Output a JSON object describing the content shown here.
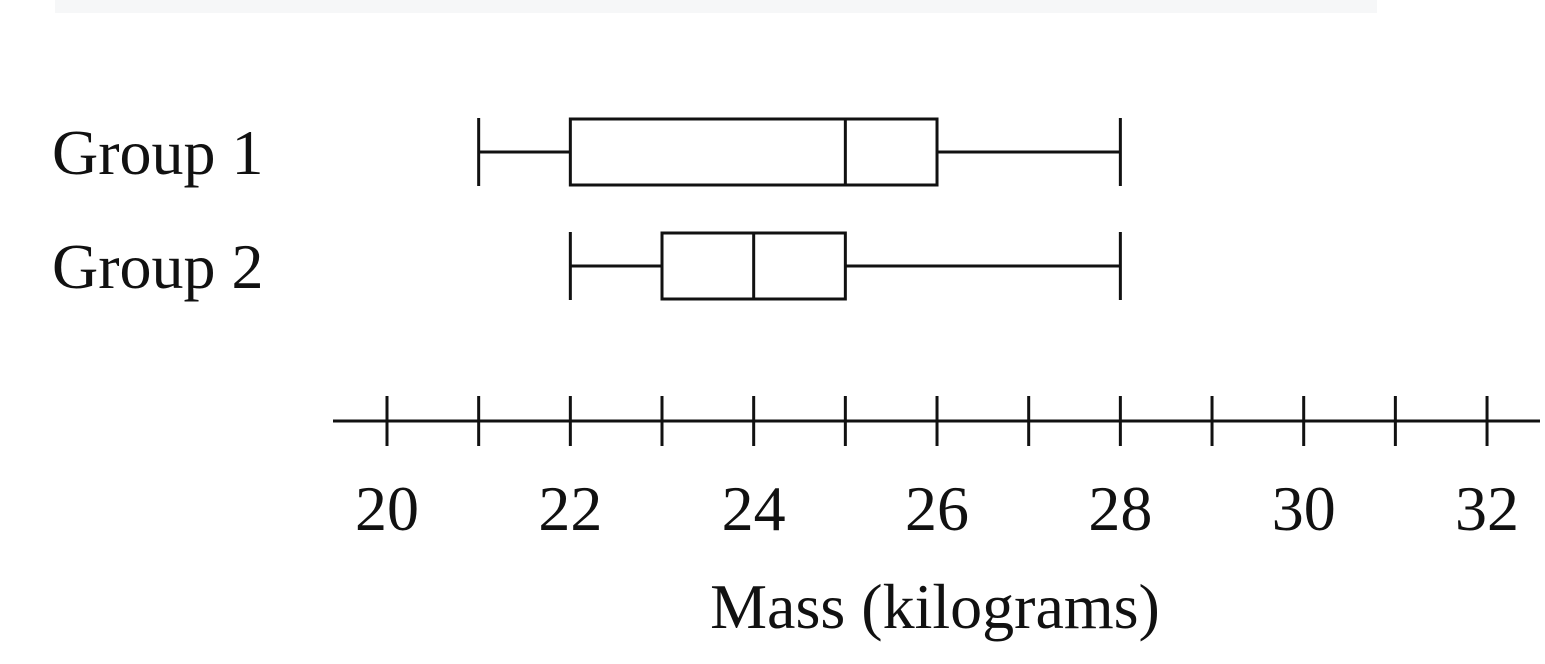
{
  "chart_data": {
    "type": "boxplot",
    "orientation": "horizontal",
    "title": "",
    "xlabel": "Mass (kilograms)",
    "ylabel": "",
    "xlim": [
      20,
      32
    ],
    "tick_step": 1,
    "tick_labels": [
      "20",
      "22",
      "24",
      "26",
      "28",
      "30",
      "32"
    ],
    "tick_label_values": [
      20,
      22,
      24,
      26,
      28,
      30,
      32
    ],
    "grid": false,
    "legend": "none",
    "series": [
      {
        "name": "Group 1",
        "min": 21,
        "q1": 22,
        "median": 25,
        "q3": 26,
        "max": 28
      },
      {
        "name": "Group 2",
        "min": 22,
        "q1": 23,
        "median": 24,
        "q3": 25,
        "max": 28
      }
    ],
    "colors": {
      "stroke": "#111111",
      "fill": "#ffffff",
      "top_strip": "#f6f7f8"
    }
  }
}
